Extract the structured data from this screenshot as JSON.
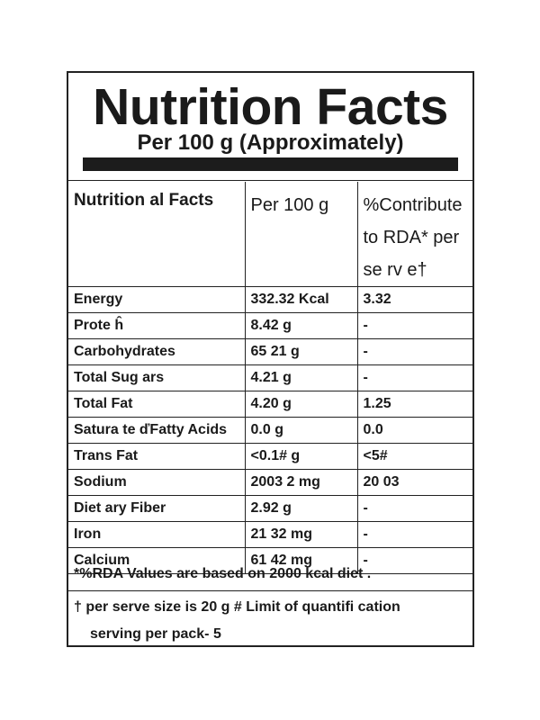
{
  "label": {
    "title": "Nutrition Facts",
    "subtitle": "Per 100 g (Approximately)",
    "headers": [
      "Nutrition al Facts",
      "Per 100  g",
      "%Contribute to RDA* per se rv e†"
    ],
    "rows": [
      {
        "nutrient": "Energy",
        "per100g": "332.32 Kcal",
        "rda": "3.32"
      },
      {
        "nutrient": "Prote ĥ",
        "per100g": "8.42 g",
        "rda": "-"
      },
      {
        "nutrient": "Carbohydrates",
        "per100g": "65 21 g",
        "rda": "-"
      },
      {
        "nutrient": "Total Sug ars",
        "per100g": "4.21 g",
        "rda": "-"
      },
      {
        "nutrient": "Total Fat",
        "per100g": "4.20 g",
        "rda": "1.25"
      },
      {
        "nutrient": "Satura te ďFatty Acids",
        "per100g": "0.0 g",
        "rda": "0.0"
      },
      {
        "nutrient": "Trans Fat",
        "per100g": "<0.1# g",
        "rda": "<5#"
      },
      {
        "nutrient": "Sodium",
        "per100g": "2003 2 mg",
        "rda": "20 03"
      },
      {
        "nutrient": "Diet ary Fiber",
        "per100g": "2.92 g",
        "rda": "-"
      },
      {
        "nutrient": "Iron",
        "per100g": "21 32 mg",
        "rda": "-"
      },
      {
        "nutrient": "Calcium",
        "per100g": "61 42 mg",
        "rda": "-"
      }
    ],
    "footnote_rda": "*%RDA Values are based on 2000 kcal diet .",
    "footnote_serve": "† per serve size is 20 g # Limit of quantifi cation",
    "footnote_pack": "serving per pack- 5"
  }
}
